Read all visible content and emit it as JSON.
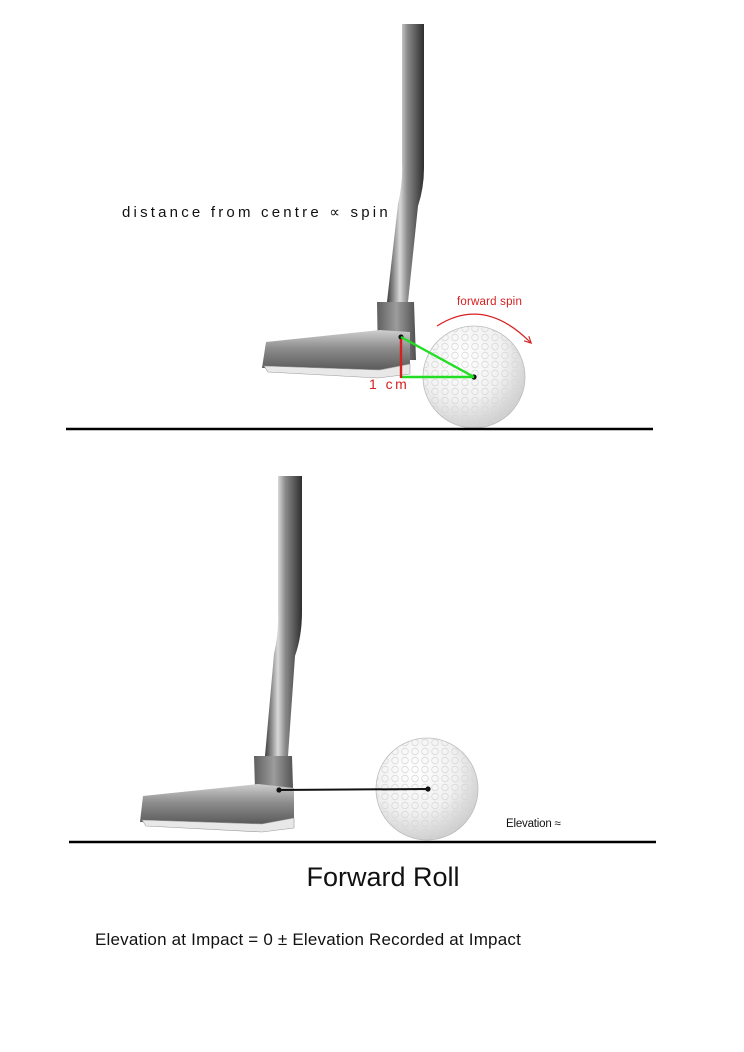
{
  "diagrams": {
    "top": {
      "annotation": "distance from centre ∝ spin",
      "spin_label": "forward spin",
      "offset_label": "1 cm"
    },
    "bottom": {
      "elevation_label": "Elevation ≈"
    }
  },
  "title": "Forward Roll",
  "formula": "Elevation at Impact = 0 ± Elevation Recorded at Impact",
  "colors": {
    "spin_arrow": "#d62020",
    "angle_lines": "#22dd22",
    "offset_marker": "#d62020",
    "ground_line": "#000000"
  }
}
